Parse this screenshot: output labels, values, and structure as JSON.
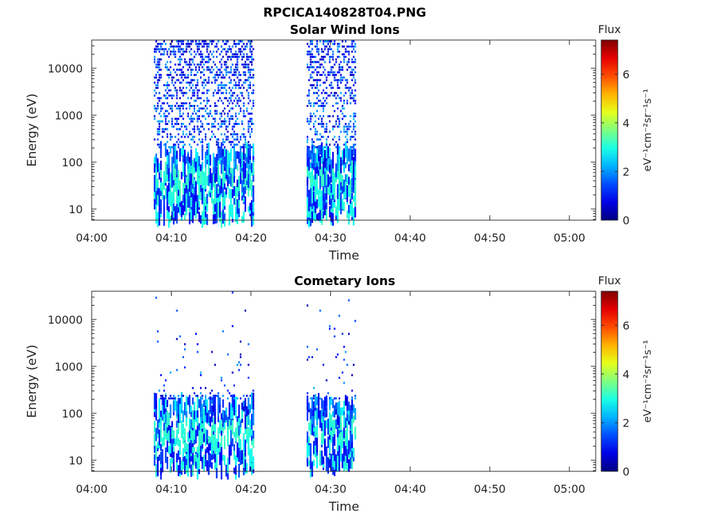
{
  "figure": {
    "title": "RPCICA140828T04.PNG"
  },
  "colors": {
    "axis": "#262626",
    "background": "#ffffff"
  },
  "chart_data": [
    {
      "type": "heatmap",
      "title": "Solar Wind Ions",
      "xlabel": "Time",
      "ylabel": "Energy (eV)",
      "xticks": [
        "04:00",
        "04:10",
        "04:20",
        "04:30",
        "04:40",
        "04:50",
        "05:00"
      ],
      "xlim_minutes": [
        0,
        63.3
      ],
      "yscale": "log",
      "ylim": [
        5.8,
        40000
      ],
      "yticks": [
        "10",
        "100",
        "1000",
        "10000"
      ],
      "colorbar": {
        "title": "Flux",
        "label": "eV⁻¹cm⁻²sr⁻¹s⁻¹",
        "ticks": [
          "0",
          "2",
          "4",
          "6"
        ],
        "range": [
          0,
          7.4
        ],
        "colormap": "jet"
      },
      "time_intervals_minutes": [
        [
          7.8,
          20.2
        ],
        [
          27.0,
          33.0
        ]
      ],
      "grid": false
    },
    {
      "type": "heatmap",
      "title": "Cometary Ions",
      "xlabel": "Time",
      "ylabel": "Energy (eV)",
      "xticks": [
        "04:00",
        "04:10",
        "04:20",
        "04:30",
        "04:40",
        "04:50",
        "05:00"
      ],
      "xlim_minutes": [
        0,
        63.3
      ],
      "yscale": "log",
      "ylim": [
        5.8,
        40000
      ],
      "yticks": [
        "10",
        "100",
        "1000",
        "10000"
      ],
      "colorbar": {
        "title": "Flux",
        "label": "eV⁻¹cm⁻²sr⁻¹s⁻¹",
        "ticks": [
          "0",
          "2",
          "4",
          "6"
        ],
        "range": [
          0,
          7.4
        ],
        "colormap": "jet"
      },
      "time_intervals_minutes": [
        [
          7.8,
          20.2
        ],
        [
          27.0,
          33.0
        ]
      ],
      "grid": false
    }
  ]
}
